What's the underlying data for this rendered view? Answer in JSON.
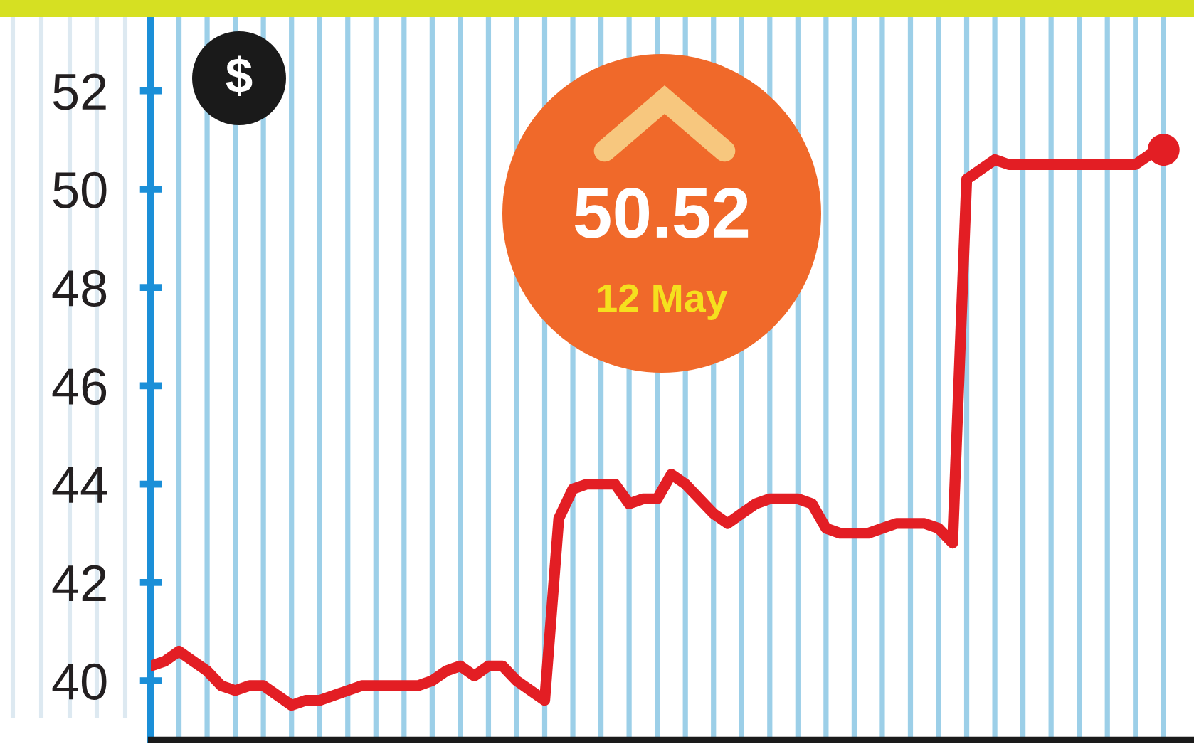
{
  "chart_data": {
    "type": "line",
    "ylabel": "$",
    "annotations": [
      "50.52",
      "12 May"
    ],
    "categories": [
      null,
      null,
      null,
      null,
      null,
      null,
      null,
      null,
      null,
      null,
      null,
      null,
      null,
      null,
      null,
      null,
      null,
      null,
      null,
      null,
      null,
      null,
      null,
      null,
      null,
      null,
      null,
      null,
      null,
      null,
      null,
      null,
      null,
      null,
      null,
      null,
      null,
      null,
      null,
      null,
      null,
      null,
      null,
      null,
      null,
      null,
      null,
      null,
      null,
      null,
      null,
      null,
      null,
      null,
      null,
      null,
      null,
      null,
      null,
      null,
      null,
      null,
      null,
      null,
      null,
      null,
      null,
      null,
      null,
      null,
      null,
      null,
      null
    ],
    "series": [
      {
        "color": "#e31e24",
        "values": [
          40.3,
          40.4,
          40.6,
          40.4,
          40.2,
          39.9,
          39.8,
          39.9,
          39.9,
          39.7,
          39.5,
          39.6,
          39.6,
          39.7,
          39.8,
          39.9,
          39.9,
          39.9,
          39.9,
          39.9,
          40.0,
          40.2,
          40.3,
          40.1,
          40.3,
          40.3,
          40.0,
          39.8,
          39.6,
          43.3,
          43.9,
          44.0,
          44.0,
          44.0,
          43.6,
          43.7,
          43.7,
          44.2,
          44.0,
          43.7,
          43.4,
          43.2,
          43.4,
          43.6,
          43.7,
          43.7,
          43.7,
          43.6,
          43.1,
          43.0,
          43.0,
          43.0,
          43.1,
          43.2,
          43.2,
          43.2,
          43.1,
          42.8,
          50.2,
          50.4,
          50.6,
          50.5,
          50.5,
          50.5,
          50.5,
          50.5,
          50.5,
          50.5,
          50.5,
          50.5,
          50.5,
          50.7,
          50.8
        ]
      },
      {
        "type": "scatter",
        "color": "#e31e24",
        "marker": "circle",
        "values": [
          null,
          null,
          null,
          null,
          null,
          null,
          null,
          null,
          null,
          null,
          null,
          null,
          null,
          null,
          null,
          null,
          null,
          null,
          null,
          null,
          null,
          null,
          null,
          null,
          null,
          null,
          null,
          null,
          null,
          null,
          null,
          null,
          null,
          null,
          null,
          null,
          null,
          null,
          null,
          null,
          null,
          null,
          null,
          null,
          null,
          null,
          null,
          null,
          null,
          null,
          null,
          null,
          null,
          null,
          null,
          null,
          null,
          null,
          null,
          null,
          null,
          null,
          null,
          null,
          null,
          null,
          null,
          null,
          null,
          null,
          null,
          null,
          50.8
        ]
      }
    ],
    "ylim": [
      38.8,
      53.5
    ],
    "yticks": [
      40,
      42,
      44,
      46,
      48,
      50,
      52
    ],
    "grid": "x",
    "tick_labels": "y"
  }
}
